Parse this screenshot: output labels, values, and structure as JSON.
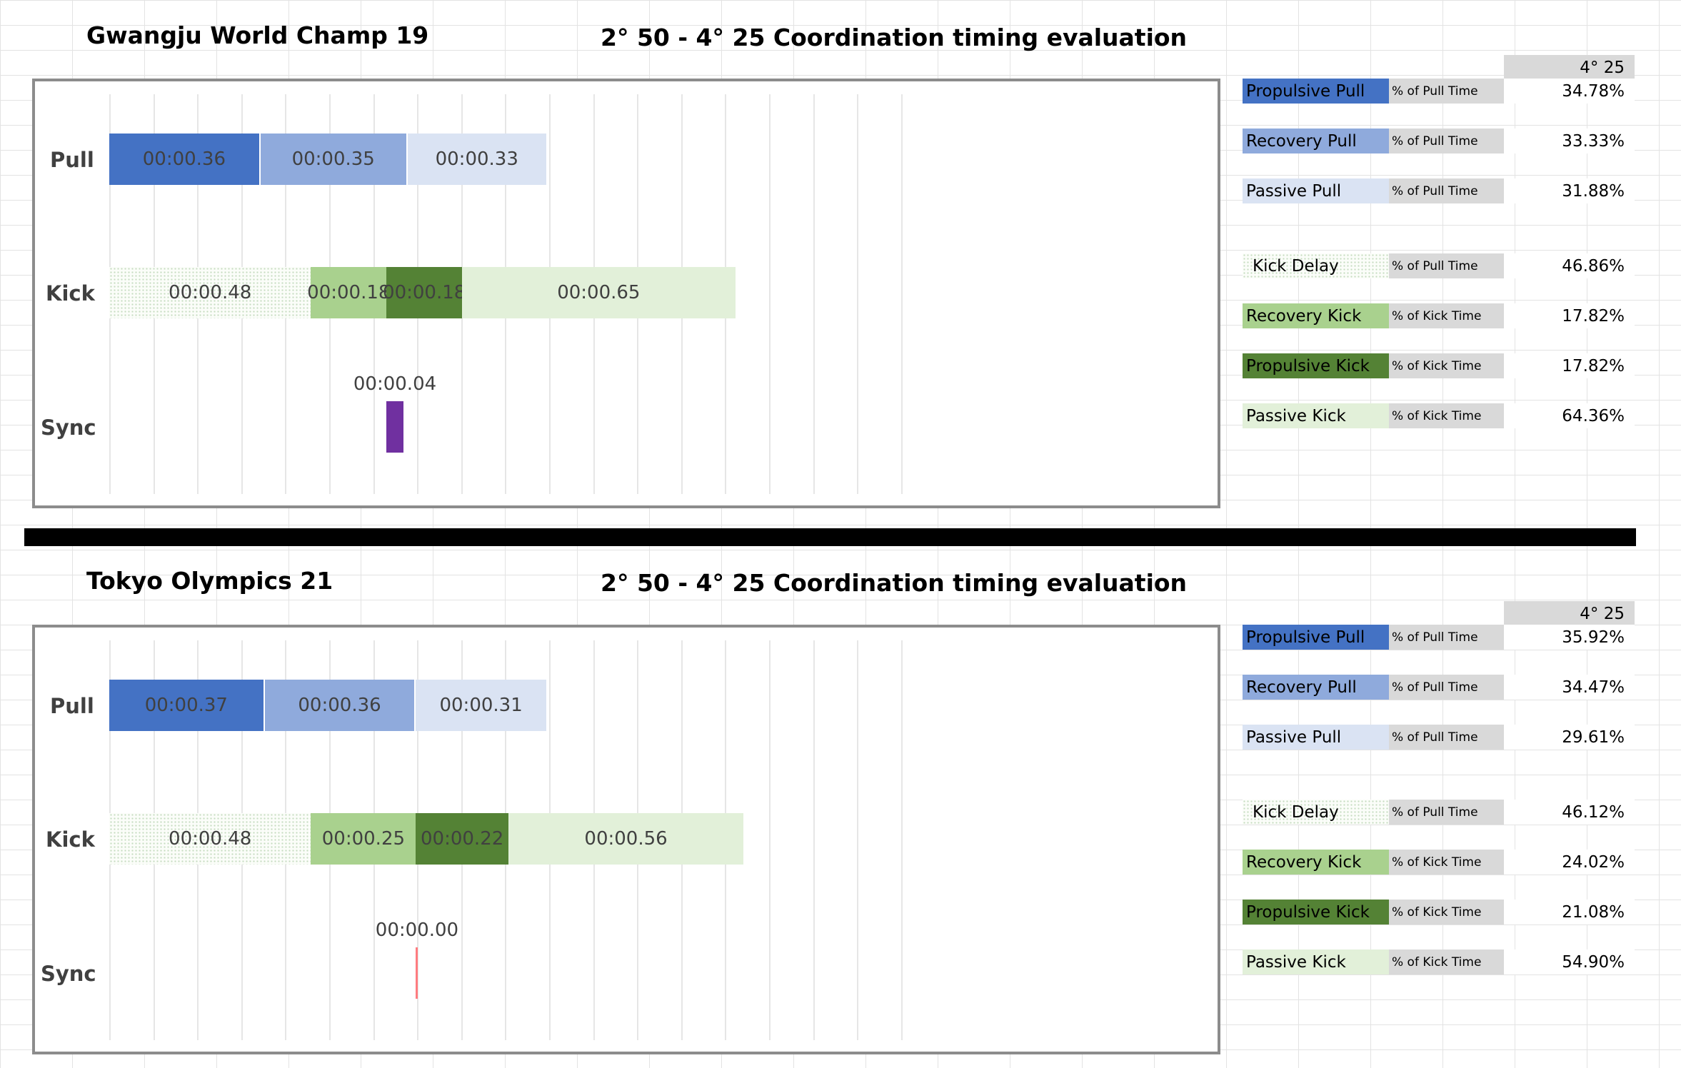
{
  "separator_color": "#000000",
  "colors": {
    "propulsive_pull": "#4472c4",
    "recovery_pull": "#8faadc",
    "passive_pull": "#dae3f3",
    "kick_delay": "dotted",
    "recovery_kick": "#a9d18e",
    "propulsive_kick": "#548235",
    "passive_kick": "#e2f0d9",
    "sync_positive": "#7030a0",
    "sync_zero": "#ff7c80"
  },
  "chart_data": [
    {
      "type": "bar",
      "subtype": "stacked-horizontal",
      "title": "Gwangju World Champ 19",
      "subtitle": "2° 50 - 4° 25 Coordination timing evaluation",
      "categories": [
        "Pull",
        "Kick",
        "Sync"
      ],
      "x_unit": "seconds",
      "series": {
        "pull": [
          {
            "name": "Propulsive Pull",
            "value": 0.36,
            "label": "00:00.36"
          },
          {
            "name": "Recovery Pull",
            "value": 0.35,
            "label": "00:00.35"
          },
          {
            "name": "Passive Pull",
            "value": 0.33,
            "label": "00:00.33"
          }
        ],
        "kick": [
          {
            "name": "Kick Delay",
            "value": 0.48,
            "label": "00:00.48"
          },
          {
            "name": "Recovery Kick",
            "value": 0.18,
            "label": "00:00.18"
          },
          {
            "name": "Propulsive Kick",
            "value": 0.18,
            "label": "00:00.18"
          },
          {
            "name": "Passive Kick",
            "value": 0.65,
            "label": "00:00.65"
          }
        ],
        "sync": {
          "start": 0.66,
          "value": 0.04,
          "label": "00:00.04"
        }
      },
      "table": {
        "header": "4° 25",
        "rows": [
          {
            "label": "Propulsive Pull",
            "unit": "% of Pull Time",
            "value": "34.78%"
          },
          {
            "label": "Recovery Pull",
            "unit": "% of Pull Time",
            "value": "33.33%"
          },
          {
            "label": "Passive Pull",
            "unit": "% of Pull Time",
            "value": "31.88%"
          },
          {
            "label": "Kick Delay",
            "unit": "% of Pull Time",
            "value": "46.86%"
          },
          {
            "label": "Recovery Kick",
            "unit": "% of Kick Time",
            "value": "17.82%"
          },
          {
            "label": "Propulsive Kick",
            "unit": "% of Kick Time",
            "value": "17.82%"
          },
          {
            "label": "Passive Kick",
            "unit": "% of Kick Time",
            "value": "64.36%"
          }
        ]
      }
    },
    {
      "type": "bar",
      "subtype": "stacked-horizontal",
      "title": "Tokyo Olympics 21",
      "subtitle": "2° 50 - 4° 25 Coordination timing evaluation",
      "categories": [
        "Pull",
        "Kick",
        "Sync"
      ],
      "x_unit": "seconds",
      "series": {
        "pull": [
          {
            "name": "Propulsive Pull",
            "value": 0.37,
            "label": "00:00.37"
          },
          {
            "name": "Recovery Pull",
            "value": 0.36,
            "label": "00:00.36"
          },
          {
            "name": "Passive Pull",
            "value": 0.31,
            "label": "00:00.31"
          }
        ],
        "kick": [
          {
            "name": "Kick Delay",
            "value": 0.48,
            "label": "00:00.48"
          },
          {
            "name": "Recovery Kick",
            "value": 0.25,
            "label": "00:00.25"
          },
          {
            "name": "Propulsive Kick",
            "value": 0.22,
            "label": "00:00.22"
          },
          {
            "name": "Passive Kick",
            "value": 0.56,
            "label": "00:00.56"
          }
        ],
        "sync": {
          "start": 0.73,
          "value": 0.0,
          "label": "00:00.00"
        }
      },
      "table": {
        "header": "4° 25",
        "rows": [
          {
            "label": "Propulsive Pull",
            "unit": "% of Pull Time",
            "value": "35.92%"
          },
          {
            "label": "Recovery Pull",
            "unit": "% of Pull Time",
            "value": "34.47%"
          },
          {
            "label": "Passive Pull",
            "unit": "% of Pull Time",
            "value": "29.61%"
          },
          {
            "label": "Kick Delay",
            "unit": "% of Pull Time",
            "value": "46.12%"
          },
          {
            "label": "Recovery Kick",
            "unit": "% of Kick Time",
            "value": "24.02%"
          },
          {
            "label": "Propulsive Kick",
            "unit": "% of Kick Time",
            "value": "21.08%"
          },
          {
            "label": "Passive Kick",
            "unit": "% of Kick Time",
            "value": "54.90%"
          }
        ]
      }
    }
  ]
}
